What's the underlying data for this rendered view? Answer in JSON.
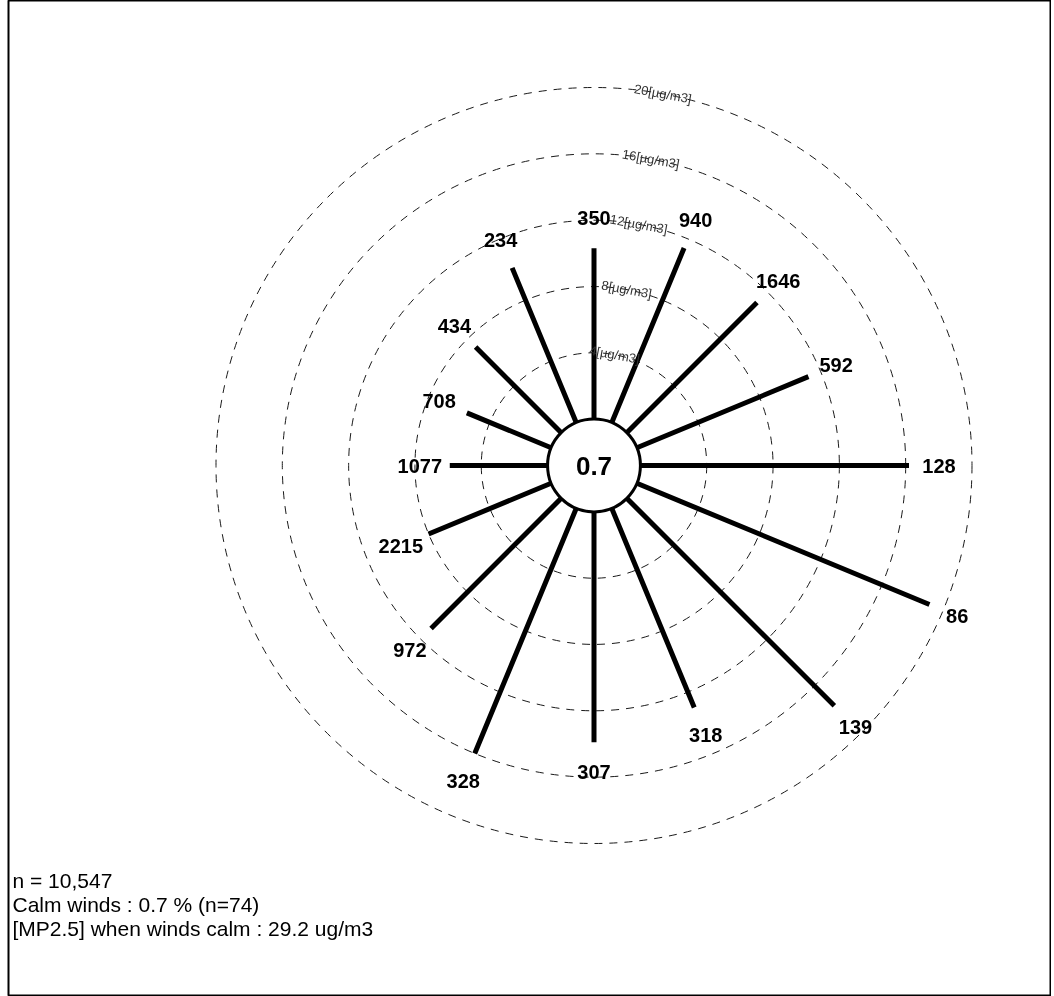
{
  "chart_data": {
    "type": "radar",
    "categories": [
      "350",
      "940",
      "1646",
      "592",
      "128",
      "86",
      "139",
      "318",
      "307",
      "328",
      "972",
      "2215",
      "1077",
      "708",
      "434",
      "234"
    ],
    "ylim": [
      -2.8,
      20
    ],
    "yticks": [
      {
        "value": 4,
        "label": "4[µg/m3]"
      },
      {
        "value": 8,
        "label": "8[µg/m3]"
      },
      {
        "value": 12,
        "label": "12[µg/m3]"
      },
      {
        "value": 16,
        "label": "16[µg/m3]"
      },
      {
        "value": 20,
        "label": "20[µg/m3]"
      }
    ],
    "grid": true,
    "series": [
      {
        "color": "#000000",
        "values": [
          10.3,
          11.4,
          11.1,
          11.2,
          16.2,
          19.1,
          17.7,
          13.0,
          13.9,
          16.0,
          11.1,
          8.0,
          5.9,
          5.5,
          7.3,
          10.1
        ]
      }
    ],
    "annotations": [
      "0.7",
      "n = 10,547",
      "Calm winds : 0.7 %  (n=74)",
      "[MP2.5] when winds calm : 29.2 ug/m3"
    ]
  }
}
